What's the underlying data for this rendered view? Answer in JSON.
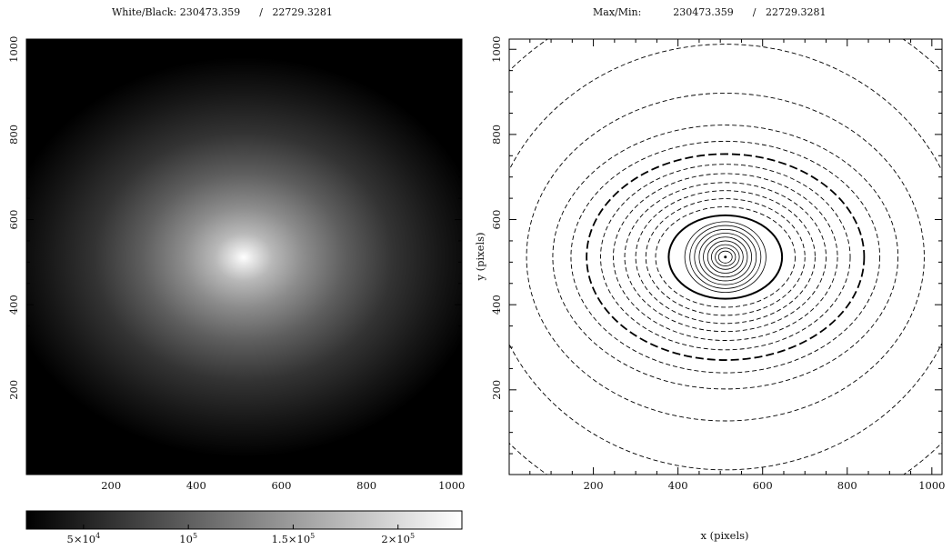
{
  "left_panel": {
    "header_label": "White/Black:",
    "header_white": "230473.359",
    "header_sep": "/",
    "header_black": "22729.3281",
    "x_ticks": [
      "200",
      "400",
      "600",
      "800",
      "1000"
    ],
    "y_ticks": [
      "200",
      "400",
      "600",
      "800",
      "1000"
    ]
  },
  "colorbar": {
    "ticks": [
      {
        "value": 50000,
        "base": "5×10",
        "exp": "4"
      },
      {
        "value": 100000,
        "base": "10",
        "exp": "5"
      },
      {
        "value": 150000,
        "base": "1.5×10",
        "exp": "5"
      },
      {
        "value": 200000,
        "base": "2×10",
        "exp": "5"
      }
    ]
  },
  "right_panel": {
    "header_label": "Max/Min:",
    "header_max": "230473.359",
    "header_sep": "/",
    "header_min": "22729.3281",
    "xlabel": "x (pixels)",
    "ylabel": "y (pixels)",
    "x_ticks": [
      "200",
      "400",
      "600",
      "800",
      "1000"
    ],
    "y_ticks": [
      "200",
      "400",
      "600",
      "800",
      "1000"
    ]
  },
  "chart_data": {
    "type": "heatmap",
    "vmin": 22729.3281,
    "vmax": 230473.359,
    "xlim": [
      1,
      1024
    ],
    "ylim": [
      1,
      1024
    ],
    "center": [
      512,
      512
    ],
    "contours": [
      {
        "rx": 16,
        "ry": 14,
        "style": "solid"
      },
      {
        "rx": 24,
        "ry": 21,
        "style": "solid"
      },
      {
        "rx": 33,
        "ry": 29,
        "style": "solid"
      },
      {
        "rx": 42,
        "ry": 38,
        "style": "solid"
      },
      {
        "rx": 52,
        "ry": 47,
        "style": "solid"
      },
      {
        "rx": 62,
        "ry": 56,
        "style": "solid"
      },
      {
        "rx": 73,
        "ry": 65,
        "style": "solid"
      },
      {
        "rx": 84,
        "ry": 74,
        "style": "solid"
      },
      {
        "rx": 96,
        "ry": 83,
        "style": "solid"
      },
      {
        "rx": 134,
        "ry": 98,
        "style": "solid-heavy"
      },
      {
        "rx": 165,
        "ry": 118,
        "style": "dashed"
      },
      {
        "rx": 188,
        "ry": 137,
        "style": "dashed"
      },
      {
        "rx": 212,
        "ry": 156,
        "style": "dashed"
      },
      {
        "rx": 238,
        "ry": 175,
        "style": "dashed"
      },
      {
        "rx": 265,
        "ry": 196,
        "style": "dashed"
      },
      {
        "rx": 295,
        "ry": 218,
        "style": "dashed"
      },
      {
        "rx": 328,
        "ry": 242,
        "style": "dash-heavy"
      },
      {
        "rx": 365,
        "ry": 272,
        "style": "dashed"
      },
      {
        "rx": 408,
        "ry": 310,
        "style": "dashed"
      },
      {
        "rx": 470,
        "ry": 385,
        "style": "dashed"
      },
      {
        "rx": 560,
        "ry": 500,
        "style": "dashed"
      },
      {
        "rx": 700,
        "ry": 640,
        "style": "dashed"
      }
    ]
  }
}
